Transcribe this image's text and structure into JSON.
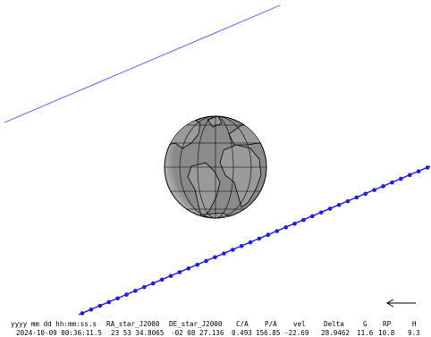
{
  "table": {
    "columns": [
      "yyyy mm dd hh:mm:ss.s",
      "RA_star_J2000",
      "DE_star_J2000",
      "C/A",
      "P/A",
      "vel",
      "Delta",
      "G",
      "RP",
      "H"
    ],
    "rows": [
      [
        "2024-10-09 00:36:11.5",
        "23 53 34.8065",
        "-02 08 27.136",
        "0.493",
        "156.85",
        "-22.69",
        "28.9462",
        "11.6",
        "10.8",
        "9.3"
      ]
    ]
  }
}
